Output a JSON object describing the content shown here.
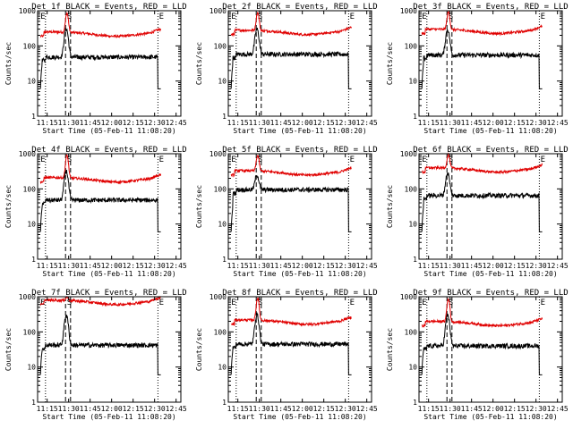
{
  "chart_data": {
    "type": "line",
    "grid": "3x3",
    "title_suffix": "BLACK = Events, RED = LLD",
    "xlabel": "Start Time (05-Feb-11 11:08:20)",
    "ylabel": "Counts/sec",
    "x_range_minutes": [
      0,
      100
    ],
    "x_tick_minutes": [
      6.67,
      21.67,
      36.67,
      51.67,
      66.67,
      81.67,
      96.67
    ],
    "x_tick_labels": [
      "11:15",
      "11:30",
      "11:45",
      "12:00",
      "12:15",
      "12:30",
      "12:45"
    ],
    "y_scale": "log",
    "y_range": [
      1,
      1000
    ],
    "y_ticks": [
      1,
      10,
      100,
      1000
    ],
    "y_tick_labels": [
      "1",
      "10",
      "100",
      "1000"
    ],
    "dotted_markers_min": [
      5.5,
      84
    ],
    "dashed_markers_min": [
      19.5,
      23
    ],
    "top_marker_labels": [
      {
        "text": "E",
        "at_min": 0.8
      },
      {
        "text": "S",
        "at_min": 19.2
      },
      {
        "text": "E",
        "at_min": 83.5
      }
    ],
    "panels": [
      {
        "title": "Det 1f",
        "x_span_min": [
          2,
          86
        ],
        "llds_base": 250,
        "llds_peak": 850,
        "events_base": 48,
        "events_peak": 310,
        "events_drop_min": 84
      },
      {
        "title": "Det 2f",
        "x_span_min": [
          2,
          86
        ],
        "llds_base": 280,
        "llds_peak": 900,
        "events_base": 58,
        "events_peak": 300,
        "events_drop_min": 84
      },
      {
        "title": "Det 3f",
        "x_span_min": [
          2,
          86
        ],
        "llds_base": 300,
        "llds_peak": 920,
        "events_base": 55,
        "events_peak": 290,
        "events_drop_min": 84
      },
      {
        "title": "Det 4f",
        "x_span_min": [
          2,
          86
        ],
        "llds_base": 210,
        "llds_peak": 900,
        "events_base": 48,
        "events_peak": 320,
        "events_drop_min": 84
      },
      {
        "title": "Det 5f",
        "x_span_min": [
          2,
          86
        ],
        "llds_base": 330,
        "llds_peak": 900,
        "events_base": 95,
        "events_peak": 250,
        "events_drop_min": 84
      },
      {
        "title": "Det 6f",
        "x_span_min": [
          2,
          86
        ],
        "llds_base": 400,
        "llds_peak": 950,
        "events_base": 65,
        "events_peak": 280,
        "events_drop_min": 84
      },
      {
        "title": "Det 7f",
        "x_span_min": [
          2,
          86
        ],
        "llds_base": 800,
        "llds_peak": 1000,
        "events_base": 42,
        "events_peak": 300,
        "events_drop_min": 84
      },
      {
        "title": "Det 8f",
        "x_span_min": [
          2,
          86
        ],
        "llds_base": 220,
        "llds_peak": 920,
        "events_base": 45,
        "events_peak": 310,
        "events_drop_min": 84
      },
      {
        "title": "Det 9f",
        "x_span_min": [
          2,
          86
        ],
        "llds_base": 200,
        "llds_peak": 880,
        "events_base": 40,
        "events_peak": 300,
        "events_drop_min": 84
      }
    ],
    "colors": {
      "events": "#000000",
      "llds": "#e00000",
      "axes": "#000000"
    }
  }
}
